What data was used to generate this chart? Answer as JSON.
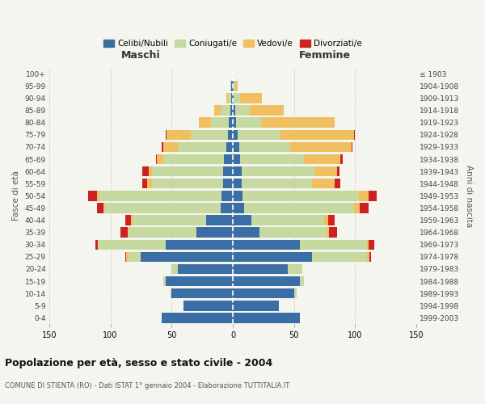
{
  "age_groups": [
    "0-4",
    "5-9",
    "10-14",
    "15-19",
    "20-24",
    "25-29",
    "30-34",
    "35-39",
    "40-44",
    "45-49",
    "50-54",
    "55-59",
    "60-64",
    "65-69",
    "70-74",
    "75-79",
    "80-84",
    "85-89",
    "90-94",
    "95-99",
    "100+"
  ],
  "birth_years": [
    "1999-2003",
    "1994-1998",
    "1989-1993",
    "1984-1988",
    "1979-1983",
    "1974-1978",
    "1969-1973",
    "1964-1968",
    "1959-1963",
    "1954-1958",
    "1949-1953",
    "1944-1948",
    "1939-1943",
    "1934-1938",
    "1929-1933",
    "1924-1928",
    "1919-1923",
    "1914-1918",
    "1909-1913",
    "1904-1908",
    "≤ 1903"
  ],
  "maschi": {
    "celibi": [
      58,
      40,
      50,
      55,
      45,
      75,
      55,
      30,
      22,
      10,
      9,
      8,
      8,
      7,
      5,
      4,
      3,
      2,
      1,
      1,
      0
    ],
    "coniugati": [
      0,
      0,
      1,
      2,
      5,
      10,
      55,
      55,
      60,
      95,
      100,
      58,
      58,
      50,
      40,
      30,
      15,
      8,
      3,
      1,
      0
    ],
    "vedovi": [
      0,
      0,
      0,
      0,
      0,
      2,
      0,
      1,
      1,
      1,
      2,
      4,
      3,
      5,
      12,
      20,
      10,
      5,
      1,
      0,
      0
    ],
    "divorziati": [
      0,
      0,
      0,
      0,
      0,
      1,
      2,
      6,
      5,
      5,
      7,
      4,
      5,
      1,
      1,
      1,
      0,
      0,
      0,
      0,
      0
    ]
  },
  "femmine": {
    "nubili": [
      55,
      38,
      50,
      55,
      45,
      65,
      55,
      22,
      15,
      9,
      8,
      7,
      7,
      6,
      5,
      4,
      3,
      2,
      1,
      1,
      0
    ],
    "coniugate": [
      0,
      0,
      2,
      3,
      12,
      45,
      55,
      55,
      60,
      90,
      95,
      58,
      60,
      52,
      42,
      35,
      20,
      12,
      5,
      1,
      0
    ],
    "vedove": [
      0,
      0,
      0,
      0,
      0,
      2,
      1,
      2,
      3,
      5,
      8,
      18,
      18,
      30,
      50,
      60,
      60,
      28,
      18,
      2,
      0
    ],
    "divorziate": [
      0,
      0,
      0,
      0,
      0,
      1,
      5,
      6,
      5,
      7,
      7,
      5,
      2,
      2,
      1,
      1,
      0,
      0,
      0,
      0,
      0
    ]
  },
  "colors": {
    "celibi": "#3a6ea5",
    "coniugati": "#c5d9a0",
    "vedovi": "#f0c060",
    "divorziati": "#cc2222"
  },
  "xlim": 150,
  "title": "Popolazione per età, sesso e stato civile - 2004",
  "subtitle": "COMUNE DI STIENTA (RO) - Dati ISTAT 1° gennaio 2004 - Elaborazione TUTTITALIA.IT",
  "xlabel_left": "Maschi",
  "xlabel_right": "Femmine",
  "ylabel_left": "Fasce di età",
  "ylabel_right": "Anni di nascita",
  "legend_labels": [
    "Celibi/Nubili",
    "Coniugati/e",
    "Vedovi/e",
    "Divorziati/e"
  ],
  "background_color": "#f5f5f0",
  "plot_bg_color": "#f5f5f0",
  "grid_color": "#aaaaaa"
}
